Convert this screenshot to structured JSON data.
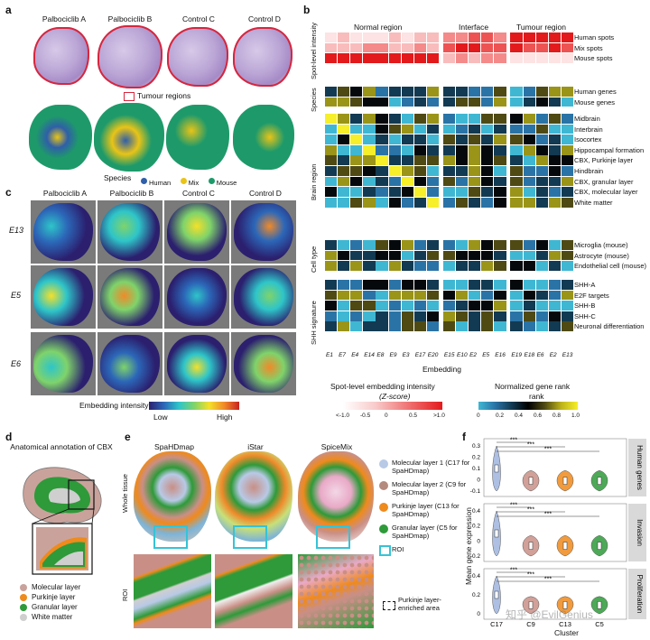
{
  "panels": {
    "a": {
      "letter": "a",
      "samples": [
        "Palbociclib A",
        "Palbociclib B",
        "Control C",
        "Control D"
      ],
      "tumour_legend": "Tumour regions",
      "species_title": "Species",
      "species": [
        {
          "label": "Human",
          "color": "#2f5fa8"
        },
        {
          "label": "Mix",
          "color": "#e9c417"
        },
        {
          "label": "Mouse",
          "color": "#1e9a6a"
        }
      ]
    },
    "b": {
      "letter": "b",
      "region_headers": [
        "Normal region",
        "Interface",
        "Tumour region"
      ],
      "row_groups": [
        "Spot-level intensity",
        "Species",
        "Brain region",
        "Cell type",
        "SHH signature"
      ],
      "rows_intensity": [
        "Human spots",
        "Mix spots",
        "Mouse spots"
      ],
      "rows_species": [
        "Human genes",
        "Mouse genes"
      ],
      "rows_brain": [
        "Midbrain",
        "Interbrain",
        "Isocortex",
        "Hippocampal formation",
        "CBX, Purkinje layer",
        "Hindbrain",
        "CBX, granular layer",
        "CBX, molecular layer",
        "White matter"
      ],
      "rows_celltype": [
        "Microglia (mouse)",
        "Astrocyte (mouse)",
        "Endothelial cell (mouse)"
      ],
      "rows_shh": [
        "SHH-A",
        "E2F targets",
        "SHH-B",
        "SHH-C",
        "Neuronal differentiation"
      ],
      "columns": [
        "E1",
        "E7",
        "E4",
        "E14",
        "E8",
        "E9",
        "E3",
        "E17",
        "E20",
        "E15",
        "E10",
        "E2",
        "E5",
        "E16",
        "E19",
        "E18",
        "E6",
        "E2",
        "E13"
      ],
      "xlabel": "Embedding",
      "cbar1_title": "Spot-level embedding intensity",
      "cbar1_sub": "(Z-score)",
      "cbar1_ticks": [
        "<-1.0",
        "-0.5",
        "0",
        "0.5",
        ">1.0"
      ],
      "cbar2_title": "Normalized gene rank",
      "cbar2_ticks": [
        "0",
        "0.2",
        "0.4",
        "0.6",
        "0.8",
        "1.0"
      ]
    },
    "c": {
      "letter": "c",
      "samples": [
        "Palbociclib A",
        "Palbociclib B",
        "Control C",
        "Control D"
      ],
      "rows": [
        "E13",
        "E5",
        "E6"
      ],
      "cbar_title": "Embedding intensity",
      "cbar_low": "Low",
      "cbar_high": "High"
    },
    "d": {
      "letter": "d",
      "title": "Anatomical annotation of CBX",
      "legend": [
        {
          "label": "Molecular layer",
          "color": "#c9a39b"
        },
        {
          "label": "Purkinje layer",
          "color": "#ef8a1c"
        },
        {
          "label": "Granular layer",
          "color": "#2e9a3a"
        },
        {
          "label": "White matter",
          "color": "#cfcfcf"
        }
      ]
    },
    "e": {
      "letter": "e",
      "methods": [
        "SpaHDmap",
        "iStar",
        "SpiceMix"
      ],
      "row_labels": [
        "Whole tissue",
        "ROI"
      ],
      "legend": [
        {
          "label": "Molecular layer 1 (C17 for SpaHDmap)",
          "color": "#b8c9e6"
        },
        {
          "label": "Molecular layer 2 (C9 for SpaHDmap)",
          "color": "#b58a7e"
        },
        {
          "label": "Purkinje layer (C13 for SpaHDmap)",
          "color": "#ef8a1c"
        },
        {
          "label": "Granular layer (C5 for SpaHDmap)",
          "color": "#2e9a3a"
        },
        {
          "label": "ROI",
          "color": "#36c3d6"
        }
      ],
      "purkinje_note": "Purkinje layer-enriched area"
    },
    "f": {
      "letter": "f",
      "facets": [
        "Human genes",
        "Invasion",
        "Proliferation"
      ],
      "ylabel": "Mean gene expression",
      "xlabel": "Cluster",
      "clusters": [
        "C17",
        "C9",
        "C13",
        "C5"
      ],
      "sig": "***",
      "yticks_top": [
        "0.3",
        "0.2",
        "0.1",
        "0",
        "-0.1"
      ],
      "yticks_mid": [
        "0.4",
        "0.2",
        "0",
        "-0.2"
      ],
      "yticks_bot": [
        "0.4",
        "0.2",
        "0"
      ],
      "cluster_colors": [
        "#9fb4dd",
        "#c98f86",
        "#ef8a1c",
        "#2e9a3a"
      ],
      "watermark": "知乎 @EvilGenius"
    }
  }
}
